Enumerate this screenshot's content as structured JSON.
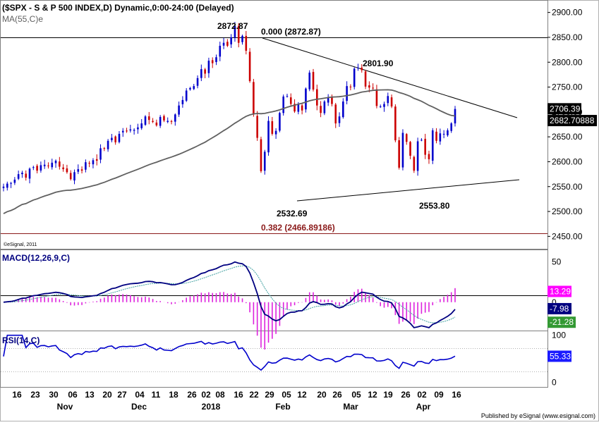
{
  "header": {
    "title": "($SPX - S & P 500 INDEX,D) Dynamic,0:00-24:00 (Delayed)",
    "ma_label": "MA(55,C)e"
  },
  "footer": {
    "copyright": "©eSignal, 2011",
    "published": "Published by eSignal (www.esignal.com)"
  },
  "colors": {
    "up": "#0000cc",
    "down": "#cc0000",
    "ma": "#606060",
    "macd": "#000080",
    "signal": "#40a0a0",
    "hist": "#dd22dd",
    "rsi": "#0000cc",
    "badge_price": "#000000",
    "badge_ma": "#000000",
    "badge_hist": "#ff00ff",
    "badge_macd": "#000080",
    "badge_signal": "#339933",
    "badge_rsi": "#1a1aff"
  },
  "chart_data": [
    {
      "type": "candlestick",
      "title": "($SPX - S & P 500 INDEX,D) Dynamic,0:00-24:00 (Delayed)",
      "ylim": [
        2425,
        2925
      ],
      "yticks": [
        "2900.00",
        "2850.00",
        "2800.00",
        "2750.00",
        "2700.00",
        "2650.00",
        "2600.00",
        "2550.00",
        "2500.00",
        "2450.00"
      ],
      "x_ticks": [
        "16",
        "23",
        "30",
        "06",
        "13",
        "20",
        "27",
        "04",
        "11",
        "18",
        "26",
        "02",
        "08",
        "16",
        "22",
        "29",
        "05",
        "12",
        "20",
        "26",
        "05",
        "12",
        "19",
        "26",
        "02",
        "09",
        "16"
      ],
      "month_labels": [
        "Nov",
        "Dec",
        "2018",
        "Feb",
        "Mar",
        "Apr"
      ],
      "closes": [
        2550,
        2556,
        2557,
        2564,
        2575,
        2578,
        2568,
        2586,
        2589,
        2582,
        2593,
        2594,
        2591,
        2598,
        2602,
        2590,
        2585,
        2579,
        2565,
        2579,
        2585,
        2582,
        2599,
        2597,
        2603,
        2602,
        2627,
        2626,
        2642,
        2648,
        2639,
        2656,
        2662,
        2661,
        2665,
        2664,
        2669,
        2677,
        2691,
        2684,
        2680,
        2673,
        2690,
        2683,
        2682,
        2681,
        2695,
        2713,
        2724,
        2743,
        2748,
        2752,
        2768,
        2786,
        2777,
        2803,
        2798,
        2810,
        2833,
        2839,
        2833,
        2850,
        2873,
        2839,
        2853,
        2823,
        2762,
        2695,
        2648,
        2581,
        2620,
        2682,
        2656,
        2662,
        2698,
        2731,
        2732,
        2716,
        2701,
        2716,
        2703,
        2747,
        2779,
        2745,
        2713,
        2698,
        2721,
        2728,
        2716,
        2677,
        2691,
        2721,
        2752,
        2750,
        2787,
        2789,
        2784,
        2751,
        2749,
        2748,
        2712,
        2711,
        2716,
        2732,
        2711,
        2643,
        2588,
        2658,
        2640,
        2612,
        2582,
        2641,
        2644,
        2614,
        2605,
        2663,
        2642,
        2657,
        2656,
        2663,
        2677,
        2706
      ],
      "ma55_name": "MA(55,C)e",
      "ma55_last": "2682.70888",
      "price_last": "2706.39",
      "annotations": {
        "high": "2872.87",
        "fib_0": "0.000 (2872.87)",
        "mar_high": "2801.90",
        "feb_low": "2532.69",
        "apr_low": "2553.80",
        "fib_382": "0.382 (2466.89186)"
      }
    },
    {
      "type": "macd",
      "name": "MACD(12,26,9,C)",
      "ylim": [
        -35,
        65
      ],
      "yticks": [
        "50",
        "0"
      ],
      "hist_last": "13.29",
      "macd_last": "-7.98",
      "signal_last": "-21.28"
    },
    {
      "type": "rsi",
      "name": "RSI(14,C)",
      "ylim": [
        -10,
        110
      ],
      "yticks": [
        "100",
        "50",
        "0"
      ],
      "levels": [
        70,
        30
      ],
      "last": "55.33"
    }
  ]
}
